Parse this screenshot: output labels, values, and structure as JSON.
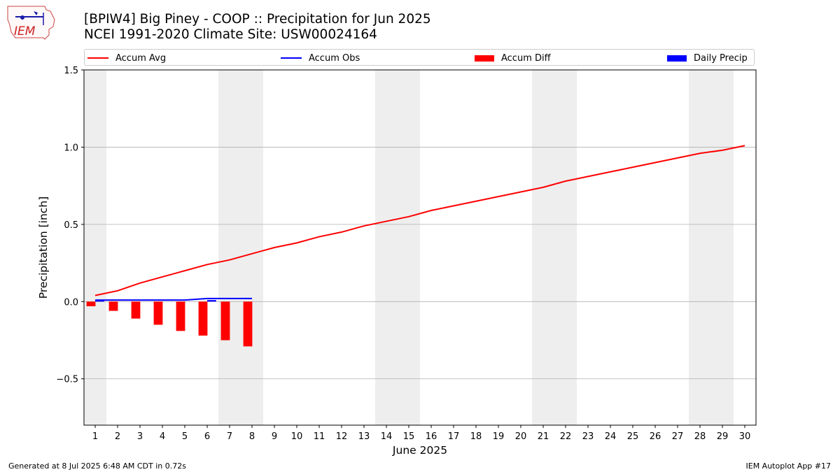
{
  "logo": {
    "text": "IEM"
  },
  "title_line1": "[BPIW4] Big Piney - COOP :: Precipitation for Jun 2025",
  "title_line2": "NCEI 1991-2020 Climate Site: USW00024164",
  "footer": {
    "left": "Generated at 8 Jul 2025 6:48 AM CDT in 0.72s",
    "right": "IEM Autoplot App #17"
  },
  "colors": {
    "accum_avg": "#ff0000",
    "accum_obs": "#0000ff",
    "accum_diff": "#ff0000",
    "daily_precip": "#0000ff",
    "weekend_band": "#eeeeee",
    "grid": "#b0b0b0"
  },
  "chart_data": {
    "type": "line",
    "xlabel": "June 2025",
    "ylabel": "Precipitation [inch]",
    "xlim": [
      0.5,
      30.5
    ],
    "ylim": [
      -0.8,
      1.5
    ],
    "x_ticks": [
      1,
      2,
      3,
      4,
      5,
      6,
      7,
      8,
      9,
      10,
      11,
      12,
      13,
      14,
      15,
      16,
      17,
      18,
      19,
      20,
      21,
      22,
      23,
      24,
      25,
      26,
      27,
      28,
      29,
      30
    ],
    "y_ticks": [
      -0.5,
      0.0,
      0.5,
      1.0,
      1.5
    ],
    "y_tick_labels": [
      "−0.5",
      "0.0",
      "0.5",
      "1.0",
      "1.5"
    ],
    "grid": "horizontal",
    "legend_position": "top",
    "weekend_bands": [
      [
        0.5,
        1.5
      ],
      [
        6.5,
        8.5
      ],
      [
        13.5,
        15.5
      ],
      [
        20.5,
        22.5
      ],
      [
        27.5,
        29.5
      ]
    ],
    "series": [
      {
        "name": "Accum Avg",
        "kind": "line",
        "x": [
          1,
          2,
          3,
          4,
          5,
          6,
          7,
          8,
          9,
          10,
          11,
          12,
          13,
          14,
          15,
          16,
          17,
          18,
          19,
          20,
          21,
          22,
          23,
          24,
          25,
          26,
          27,
          28,
          29,
          30
        ],
        "values": [
          0.04,
          0.07,
          0.12,
          0.16,
          0.2,
          0.24,
          0.27,
          0.31,
          0.35,
          0.38,
          0.42,
          0.45,
          0.49,
          0.52,
          0.55,
          0.59,
          0.62,
          0.65,
          0.68,
          0.71,
          0.74,
          0.78,
          0.81,
          0.84,
          0.87,
          0.9,
          0.93,
          0.96,
          0.98,
          1.01
        ]
      },
      {
        "name": "Accum Obs",
        "kind": "line",
        "x": [
          1,
          2,
          3,
          4,
          5,
          6,
          7,
          8
        ],
        "values": [
          0.01,
          0.01,
          0.01,
          0.01,
          0.01,
          0.02,
          0.02,
          0.02
        ]
      },
      {
        "name": "Accum Diff",
        "kind": "bar",
        "x": [
          1,
          2,
          3,
          4,
          5,
          6,
          7,
          8
        ],
        "values": [
          -0.03,
          -0.06,
          -0.11,
          -0.15,
          -0.19,
          -0.22,
          -0.25,
          -0.29
        ]
      },
      {
        "name": "Daily Precip",
        "kind": "bar",
        "x": [
          1,
          6
        ],
        "values": [
          0.01,
          0.01
        ]
      }
    ]
  }
}
